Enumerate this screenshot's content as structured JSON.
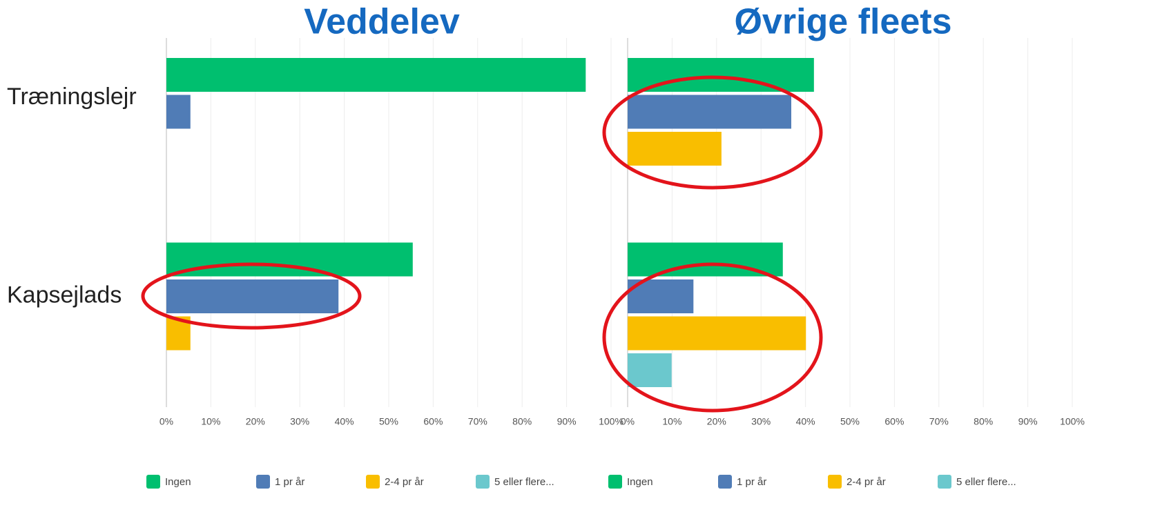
{
  "chart_data": [
    {
      "type": "bar",
      "orientation": "horizontal",
      "title": "Veddelev",
      "categories": [
        "Træningslejr",
        "Kapsejlads"
      ],
      "series": [
        {
          "name": "Ingen",
          "color": "#00bf6f",
          "values": [
            94.3,
            55.4
          ]
        },
        {
          "name": "1 pr år",
          "color": "#507cb6",
          "values": [
            5.4,
            38.7
          ]
        },
        {
          "name": "2-4 pr år",
          "color": "#f9be00",
          "values": [
            0,
            5.4
          ]
        },
        {
          "name": "5 eller flere...",
          "color": "#6bc8cd",
          "values": [
            0,
            0
          ]
        }
      ],
      "xlim": [
        0,
        100
      ],
      "xticks": [
        {
          "value": 0,
          "label": "0%"
        },
        {
          "value": 10,
          "label": "10%"
        },
        {
          "value": 20,
          "label": "20%"
        },
        {
          "value": 30,
          "label": "30%"
        },
        {
          "value": 40,
          "label": "40%"
        },
        {
          "value": 50,
          "label": "50%"
        },
        {
          "value": 60,
          "label": "60%"
        },
        {
          "value": 70,
          "label": "70%"
        },
        {
          "value": 80,
          "label": "80%"
        },
        {
          "value": 90,
          "label": "90%"
        },
        {
          "value": 100,
          "label": "100%"
        }
      ],
      "grid": true
    },
    {
      "type": "bar",
      "orientation": "horizontal",
      "title": "Øvrige fleets",
      "categories": [
        null,
        null
      ],
      "series": [
        {
          "name": "Ingen",
          "color": "#00bf6f",
          "values": [
            41.9,
            34.9
          ]
        },
        {
          "name": "1 pr år",
          "color": "#507cb6",
          "values": [
            36.8,
            14.8
          ]
        },
        {
          "name": "2-4 pr år",
          "color": "#f9be00",
          "values": [
            21.1,
            40.1
          ]
        },
        {
          "name": "5 eller flere...",
          "color": "#6bc8cd",
          "values": [
            0,
            9.9
          ]
        }
      ],
      "xlim": [
        0,
        100
      ],
      "xticks": [
        {
          "value": 0,
          "label": "0%"
        },
        {
          "value": 10,
          "label": "10%"
        },
        {
          "value": 20,
          "label": "20%"
        },
        {
          "value": 30,
          "label": "30%"
        },
        {
          "value": 40,
          "label": "40%"
        },
        {
          "value": 50,
          "label": "50%"
        },
        {
          "value": 60,
          "label": "60%"
        },
        {
          "value": 70,
          "label": "70%"
        },
        {
          "value": 80,
          "label": "80%"
        },
        {
          "value": 90,
          "label": "90%"
        },
        {
          "value": 100,
          "label": "100%"
        }
      ],
      "grid": true
    }
  ]
}
